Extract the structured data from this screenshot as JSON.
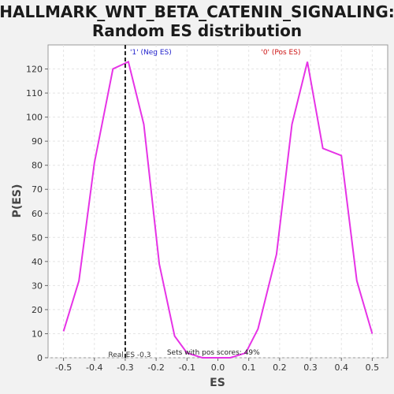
{
  "chart_data": {
    "type": "line",
    "title_line1": "HALLMARK_WNT_BETA_CATENIN_SIGNALING:",
    "title_line2": "Random ES distribution",
    "xlabel": "ES",
    "ylabel": "P(ES)",
    "xlim": [
      -0.55,
      0.55
    ],
    "ylim": [
      0,
      130
    ],
    "xticks": [
      "-0.5",
      "-0.4",
      "-0.3",
      "-0.2",
      "-0.1",
      "0.0",
      "0.1",
      "0.2",
      "0.3",
      "0.4",
      "0.5"
    ],
    "yticks": [
      "0",
      "10",
      "20",
      "30",
      "40",
      "50",
      "60",
      "70",
      "80",
      "90",
      "100",
      "110",
      "120"
    ],
    "grid": true,
    "series": [
      {
        "color": "#e633e6",
        "x": [
          -0.5,
          -0.45,
          -0.4,
          -0.34,
          -0.29,
          -0.24,
          -0.19,
          -0.14,
          -0.1,
          -0.05,
          0.0,
          0.04,
          0.09,
          0.13,
          0.19,
          0.24,
          0.29,
          0.34,
          0.4,
          0.45,
          0.5
        ],
        "y": [
          11,
          32,
          81,
          120,
          123,
          97,
          39,
          9,
          2,
          0,
          0,
          0,
          2,
          12,
          43,
          97,
          123,
          87,
          84,
          32,
          10
        ]
      }
    ],
    "real_es": -0.3,
    "real_es_label": "Real ES -0.3",
    "neg_label": "'1' (Neg ES)",
    "pos_label": "'0' (Pos ES)",
    "pos_scores_label": "Sets with pos scores: 49%",
    "colors": {
      "neg": "#2222cc",
      "pos": "#cc1111",
      "line": "#e633e6"
    }
  }
}
